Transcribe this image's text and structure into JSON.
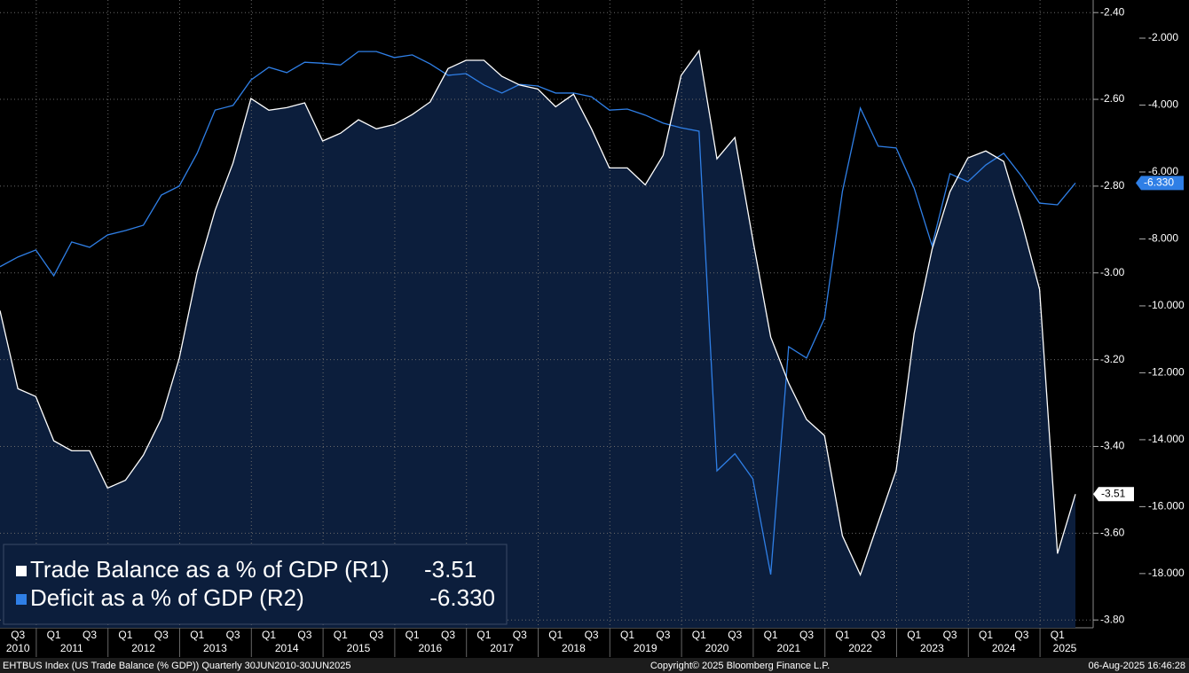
{
  "chart_data": {
    "type": "line",
    "categories": [
      null,
      "Q3",
      null,
      "Q1",
      null,
      "Q3",
      null,
      "Q1",
      null,
      "Q3",
      null,
      "Q1",
      null,
      "Q3",
      null,
      "Q1",
      null,
      "Q3",
      null,
      "Q1",
      null,
      "Q3",
      null,
      "Q1",
      null,
      "Q3",
      null,
      "Q1",
      null,
      "Q3",
      null,
      "Q1",
      null,
      "Q3",
      null,
      "Q1",
      null,
      "Q3",
      null,
      "Q1",
      null,
      "Q3",
      null,
      "Q1",
      null,
      "Q3",
      null,
      "Q1",
      null,
      "Q3",
      null,
      "Q1",
      null,
      "Q3",
      null,
      "Q1",
      null,
      "Q3",
      null,
      "Q1",
      null
    ],
    "year_labels": [
      "2010",
      "2011",
      "2012",
      "2013",
      "2014",
      "2015",
      "2016",
      "2017",
      "2018",
      "2019",
      "2020",
      "2021",
      "2022",
      "2023",
      "2024",
      "2025"
    ],
    "series": [
      {
        "name": "Trade Balance as a % of GDP (R1)",
        "color": "#ffffff",
        "axis": "y",
        "values": [
          -3.087,
          -3.267,
          -3.285,
          -3.387,
          -3.41,
          -3.41,
          -3.496,
          -3.478,
          -3.42,
          -3.336,
          -3.197,
          -2.999,
          -2.856,
          -2.747,
          -2.598,
          -2.625,
          -2.619,
          -2.608,
          -2.696,
          -2.678,
          -2.647,
          -2.668,
          -2.658,
          -2.635,
          -2.606,
          -2.529,
          -2.51,
          -2.51,
          -2.547,
          -2.567,
          -2.576,
          -2.617,
          -2.588,
          -2.668,
          -2.758,
          -2.758,
          -2.797,
          -2.729,
          -2.545,
          -2.488,
          -2.737,
          -2.688,
          -2.923,
          -3.148,
          -3.254,
          -3.338,
          -3.375,
          -3.606,
          -3.696,
          -3.575,
          -3.455,
          -3.14,
          -2.946,
          -2.813,
          -2.735,
          -2.719,
          -2.743,
          -2.882,
          -3.038,
          -3.647,
          -3.51
        ]
      },
      {
        "name": "Deficit as a % of GDP (R2)",
        "color": "#2f7fe6",
        "axis": "y2",
        "values": [
          -8.83,
          -8.54,
          -8.33,
          -9.1,
          -8.09,
          -8.25,
          -7.88,
          -7.75,
          -7.59,
          -6.69,
          -6.42,
          -5.44,
          -4.15,
          -4.01,
          -3.25,
          -2.87,
          -3.03,
          -2.72,
          -2.75,
          -2.8,
          -2.4,
          -2.4,
          -2.58,
          -2.5,
          -2.77,
          -3.11,
          -3.06,
          -3.4,
          -3.64,
          -3.38,
          -3.43,
          -3.64,
          -3.64,
          -3.75,
          -4.15,
          -4.12,
          -4.3,
          -4.54,
          -4.68,
          -4.78,
          -14.93,
          -14.42,
          -15.17,
          -18.03,
          -11.22,
          -11.56,
          -10.37,
          -6.58,
          -4.09,
          -5.23,
          -5.28,
          -6.48,
          -8.2,
          -6.05,
          -6.29,
          -5.79,
          -5.44,
          -6.13,
          -6.93,
          -6.98,
          -6.33
        ],
        "value_labels": [
          null,
          null,
          null,
          null,
          null,
          null,
          null,
          null,
          null,
          null,
          null,
          null,
          null,
          null,
          null,
          null,
          null,
          null,
          null,
          null,
          null,
          null,
          null,
          null,
          null,
          null,
          null,
          null,
          null,
          null,
          null,
          null,
          null,
          null,
          null,
          null,
          null,
          null,
          null,
          null,
          null,
          null,
          null,
          null,
          null,
          null,
          null,
          null,
          null,
          null,
          null,
          null,
          null,
          null,
          null,
          null,
          null,
          null,
          null,
          null,
          "-6.330"
        ]
      }
    ],
    "ylim": [
      -3.818,
      -2.371
    ],
    "yticks": [
      {
        "value": -2.4,
        "label": "-2.40"
      },
      {
        "value": -2.6,
        "label": "-2.60"
      },
      {
        "value": -2.8,
        "label": "-2.80"
      },
      {
        "value": -3.0,
        "label": "-3.00"
      },
      {
        "value": -3.2,
        "label": "-3.20"
      },
      {
        "value": -3.4,
        "label": "-3.40"
      },
      {
        "value": -3.6,
        "label": "-3.60"
      },
      {
        "value": -3.8,
        "label": "-3.80"
      }
    ],
    "y2lim": [
      -19.62,
      -0.86
    ],
    "y2ticks": [
      {
        "value": -2,
        "label": "-2.000"
      },
      {
        "value": -4,
        "label": "-4.000"
      },
      {
        "value": -6,
        "label": "-6.000"
      },
      {
        "value": -8,
        "label": "-8.000"
      },
      {
        "value": -10,
        "label": "-10.000"
      },
      {
        "value": -12,
        "label": "-12.000"
      },
      {
        "value": -14,
        "label": "-14.000"
      },
      {
        "value": -16,
        "label": "-16.000"
      },
      {
        "value": -18,
        "label": "-18.000"
      }
    ],
    "grid": true,
    "area_fill": "#0c1e3c",
    "footer": {
      "left": "EHTBUS Index (US Trade Balance (% GDP))  Quarterly 30JUN2010-30JUN2025",
      "center": "Copyright© 2025 Bloomberg Finance L.P.",
      "right": "06-Aug-2025 16:46:28"
    }
  }
}
